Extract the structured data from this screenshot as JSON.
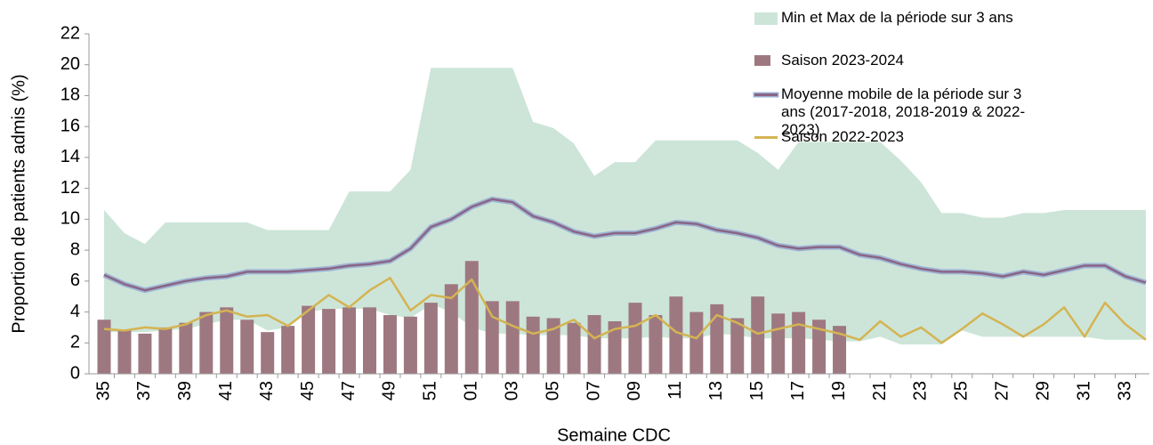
{
  "chart_data": {
    "type": "combo",
    "y_label": "Proportion de patients admis (%)",
    "x_label": "Semaine CDC",
    "categories": [
      "35",
      null,
      "37",
      null,
      "39",
      null,
      "41",
      null,
      "43",
      null,
      "45",
      null,
      "47",
      null,
      "49",
      null,
      "51",
      null,
      "01",
      null,
      "03",
      null,
      "05",
      null,
      "07",
      null,
      "09",
      null,
      "11",
      null,
      "13",
      null,
      "15",
      null,
      "17",
      null,
      "19",
      null,
      "21",
      null,
      "23",
      null,
      "25",
      null,
      "27",
      null,
      "29",
      null,
      "31",
      null,
      "33",
      null
    ],
    "ylim": [
      0,
      22
    ],
    "yticks": [
      0,
      2,
      4,
      6,
      8,
      10,
      12,
      14,
      16,
      18,
      20,
      22
    ],
    "grid": false,
    "legend": "top-right",
    "series": [
      {
        "name": "Min et Max de la période sur 3 ans",
        "type": "band",
        "color": "#cde5d9",
        "high": [
          10.6,
          9.1,
          8.4,
          9.8,
          9.8,
          9.8,
          9.8,
          9.8,
          9.3,
          9.3,
          9.3,
          9.3,
          11.8,
          11.8,
          11.8,
          13.2,
          19.8,
          19.8,
          19.8,
          19.8,
          19.8,
          16.3,
          15.9,
          14.9,
          12.8,
          13.7,
          13.7,
          15.1,
          15.1,
          15.1,
          15.1,
          15.1,
          14.3,
          13.2,
          15.0,
          15.0,
          15.0,
          15.0,
          15.0,
          13.8,
          12.4,
          10.4,
          10.4,
          10.1,
          10.1,
          10.4,
          10.4,
          10.6,
          10.6,
          10.6,
          10.6,
          10.6
        ],
        "low": [
          2.7,
          2.7,
          2.7,
          2.8,
          2.9,
          3.2,
          3.5,
          3.5,
          2.8,
          3.0,
          4.0,
          4.2,
          4.2,
          4.2,
          3.8,
          3.6,
          4.5,
          4.0,
          3.0,
          2.6,
          2.6,
          2.5,
          2.5,
          2.5,
          2.3,
          2.3,
          2.3,
          2.4,
          2.3,
          2.3,
          2.6,
          2.5,
          2.3,
          2.3,
          2.3,
          2.2,
          2.1,
          2.1,
          2.4,
          1.9,
          1.9,
          1.9,
          2.8,
          2.4,
          2.4,
          2.4,
          2.4,
          2.4,
          2.4,
          2.2,
          2.2,
          2.2
        ]
      },
      {
        "name": "Saison 2023-2024",
        "type": "bar",
        "color": "#9e7880",
        "values": [
          3.5,
          2.8,
          2.6,
          3.0,
          3.3,
          4.0,
          4.3,
          3.5,
          2.7,
          3.1,
          4.4,
          4.2,
          4.3,
          4.3,
          3.8,
          3.7,
          4.6,
          5.8,
          7.3,
          4.7,
          4.7,
          3.7,
          3.6,
          3.3,
          3.8,
          3.4,
          4.6,
          3.8,
          5.0,
          4.0,
          4.5,
          3.6,
          5.0,
          3.9,
          4.0,
          3.5,
          3.1,
          null,
          null,
          null,
          null,
          null,
          null,
          null,
          null,
          null,
          null,
          null,
          null,
          null,
          null,
          null
        ]
      },
      {
        "name": "Moyenne mobile de la période sur 3 ans (2017-2018, 2018-2019 & 2022-2023)",
        "type": "line",
        "color": "#8a6585",
        "values": [
          6.4,
          5.8,
          5.4,
          5.7,
          6.0,
          6.2,
          6.3,
          6.6,
          6.6,
          6.6,
          6.7,
          6.8,
          7.0,
          7.1,
          7.3,
          8.1,
          9.5,
          10.0,
          10.8,
          11.3,
          11.1,
          10.2,
          9.8,
          9.2,
          8.9,
          9.1,
          9.1,
          9.4,
          9.8,
          9.7,
          9.3,
          9.1,
          8.8,
          8.3,
          8.1,
          8.2,
          8.2,
          7.7,
          7.5,
          7.1,
          6.8,
          6.6,
          6.6,
          6.5,
          6.3,
          6.6,
          6.4,
          6.7,
          7.0,
          7.0,
          6.3,
          5.9
        ]
      },
      {
        "name": "Saison 2022-2023",
        "type": "line",
        "color": "#d4b452",
        "values": [
          2.9,
          2.8,
          3.0,
          2.9,
          3.2,
          3.8,
          4.1,
          3.7,
          3.8,
          3.1,
          4.1,
          5.1,
          4.3,
          5.4,
          6.2,
          4.1,
          5.1,
          4.9,
          6.1,
          3.7,
          3.1,
          2.6,
          2.9,
          3.5,
          2.3,
          2.9,
          3.1,
          3.8,
          2.7,
          2.3,
          3.8,
          3.3,
          2.6,
          2.9,
          3.2,
          2.9,
          2.6,
          2.2,
          3.4,
          2.4,
          3.0,
          2.0,
          2.9,
          3.9,
          3.2,
          2.4,
          3.2,
          4.3,
          2.4,
          4.6,
          3.2,
          2.2
        ]
      }
    ]
  }
}
